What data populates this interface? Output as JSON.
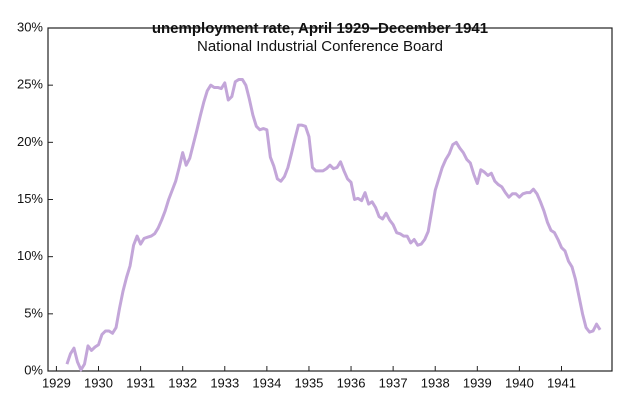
{
  "chart_data": {
    "type": "line",
    "title": "unemployment rate, April 1929–December 1941",
    "subtitle": "National Industrial Conference Board",
    "x": [
      1929.25,
      1929.333,
      1929.417,
      1929.5,
      1929.583,
      1929.667,
      1929.75,
      1929.833,
      1929.917,
      1930,
      1930.083,
      1930.167,
      1930.25,
      1930.333,
      1930.417,
      1930.5,
      1930.583,
      1930.667,
      1930.75,
      1930.833,
      1930.917,
      1931,
      1931.083,
      1931.167,
      1931.25,
      1931.333,
      1931.417,
      1931.5,
      1931.583,
      1931.667,
      1931.75,
      1931.833,
      1931.917,
      1932,
      1932.083,
      1932.167,
      1932.25,
      1932.333,
      1932.417,
      1932.5,
      1932.583,
      1932.667,
      1932.75,
      1932.833,
      1932.917,
      1933,
      1933.083,
      1933.167,
      1933.25,
      1933.333,
      1933.417,
      1933.5,
      1933.583,
      1933.667,
      1933.75,
      1933.833,
      1933.917,
      1934,
      1934.083,
      1934.167,
      1934.25,
      1934.333,
      1934.417,
      1934.5,
      1934.583,
      1934.667,
      1934.75,
      1934.833,
      1934.917,
      1935,
      1935.083,
      1935.167,
      1935.25,
      1935.333,
      1935.417,
      1935.5,
      1935.583,
      1935.667,
      1935.75,
      1935.833,
      1935.917,
      1936,
      1936.083,
      1936.167,
      1936.25,
      1936.333,
      1936.417,
      1936.5,
      1936.583,
      1936.667,
      1936.75,
      1936.833,
      1936.917,
      1937,
      1937.083,
      1937.167,
      1937.25,
      1937.333,
      1937.417,
      1937.5,
      1937.583,
      1937.667,
      1937.75,
      1937.833,
      1937.917,
      1938,
      1938.083,
      1938.167,
      1938.25,
      1938.333,
      1938.417,
      1938.5,
      1938.583,
      1938.667,
      1938.75,
      1938.833,
      1938.917,
      1939,
      1939.083,
      1939.167,
      1939.25,
      1939.333,
      1939.417,
      1939.5,
      1939.583,
      1939.667,
      1939.75,
      1939.833,
      1939.917,
      1940,
      1940.083,
      1940.167,
      1940.25,
      1940.333,
      1940.417,
      1940.5,
      1940.583,
      1940.667,
      1940.75,
      1940.833,
      1940.917,
      1941,
      1941.083,
      1941.167,
      1941.25,
      1941.333,
      1941.417,
      1941.5,
      1941.583,
      1941.667,
      1941.75,
      1941.833,
      1941.917
    ],
    "series": [
      {
        "color": "#c3a6d9",
        "values": [
          0.6,
          1.5,
          2.0,
          0.8,
          0.1,
          0.6,
          2.2,
          1.8,
          2.1,
          2.3,
          3.2,
          3.5,
          3.5,
          3.3,
          3.8,
          5.5,
          7.0,
          8.2,
          9.2,
          11.0,
          11.8,
          11.1,
          11.6,
          11.7,
          11.8,
          12.0,
          12.5,
          13.2,
          14.0,
          15.0,
          15.8,
          16.6,
          17.8,
          19.1,
          18.0,
          18.6,
          19.8,
          21.0,
          22.3,
          23.5,
          24.5,
          25.0,
          24.8,
          24.8,
          24.7,
          25.2,
          23.7,
          24.0,
          25.3,
          25.5,
          25.5,
          25.0,
          23.8,
          22.4,
          21.4,
          21.1,
          21.2,
          21.1,
          18.7,
          17.9,
          16.8,
          16.6,
          17.0,
          17.8,
          19.0,
          20.3,
          21.5,
          21.5,
          21.4,
          20.5,
          17.8,
          17.5,
          17.5,
          17.5,
          17.7,
          18.0,
          17.7,
          17.8,
          18.3,
          17.5,
          16.8,
          16.5,
          15.0,
          15.1,
          14.9,
          15.6,
          14.6,
          14.8,
          14.3,
          13.5,
          13.3,
          13.8,
          13.2,
          12.8,
          12.1,
          12.0,
          11.8,
          11.8,
          11.2,
          11.5,
          11.0,
          11.1,
          11.5,
          12.2,
          14.0,
          15.8,
          16.8,
          17.8,
          18.5,
          19.0,
          19.8,
          20.0,
          19.5,
          19.1,
          18.5,
          18.2,
          17.2,
          16.4,
          17.6,
          17.4,
          17.1,
          17.3,
          16.6,
          16.3,
          16.1,
          15.6,
          15.2,
          15.5,
          15.5,
          15.2,
          15.5,
          15.6,
          15.6,
          15.9,
          15.5,
          14.8,
          14.0,
          13.0,
          12.3,
          12.1,
          11.5,
          10.8,
          10.5,
          9.6,
          9.1,
          8.0,
          6.5,
          5.0,
          3.8,
          3.4,
          3.5,
          4.1,
          3.6
        ]
      }
    ],
    "xlim": [
      1928.8,
      1942.2
    ],
    "xticks": [
      1929,
      1930,
      1931,
      1932,
      1933,
      1934,
      1935,
      1936,
      1937,
      1938,
      1939,
      1940,
      1941
    ],
    "ylim": [
      0,
      30
    ],
    "yticks": [
      {
        "value": 0,
        "label": "0%"
      },
      {
        "value": 5,
        "label": "5%"
      },
      {
        "value": 10,
        "label": "10%"
      },
      {
        "value": 15,
        "label": "15%"
      },
      {
        "value": 20,
        "label": "20%"
      },
      {
        "value": 25,
        "label": "25%"
      },
      {
        "value": 30,
        "label": "30%"
      }
    ]
  }
}
